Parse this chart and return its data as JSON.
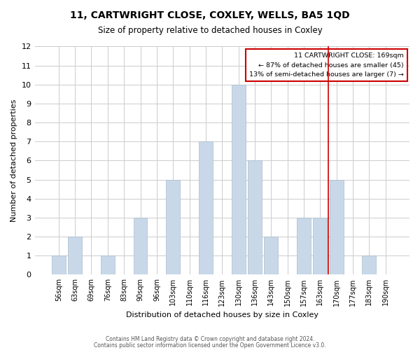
{
  "title": "11, CARTWRIGHT CLOSE, COXLEY, WELLS, BA5 1QD",
  "subtitle": "Size of property relative to detached houses in Coxley",
  "xlabel": "Distribution of detached houses by size in Coxley",
  "ylabel": "Number of detached properties",
  "bar_labels": [
    "56sqm",
    "63sqm",
    "69sqm",
    "76sqm",
    "83sqm",
    "90sqm",
    "96sqm",
    "103sqm",
    "110sqm",
    "116sqm",
    "123sqm",
    "130sqm",
    "136sqm",
    "143sqm",
    "150sqm",
    "157sqm",
    "163sqm",
    "170sqm",
    "177sqm",
    "183sqm",
    "190sqm"
  ],
  "bar_values": [
    1,
    2,
    0,
    1,
    0,
    3,
    0,
    5,
    0,
    7,
    0,
    10,
    6,
    2,
    0,
    3,
    3,
    5,
    0,
    1,
    0
  ],
  "bar_color": "#c8d8e8",
  "bar_edgecolor": "#aabccc",
  "ylim": [
    0,
    12
  ],
  "yticks": [
    0,
    1,
    2,
    3,
    4,
    5,
    6,
    7,
    8,
    9,
    10,
    11,
    12
  ],
  "ref_line_color": "#cc0000",
  "annotation_line1": "11 CARTWRIGHT CLOSE: 169sqm",
  "annotation_line2": "← 87% of detached houses are smaller (45)",
  "annotation_line3": "13% of semi-detached houses are larger (7) →",
  "footer1": "Contains HM Land Registry data © Crown copyright and database right 2024.",
  "footer2": "Contains public sector information licensed under the Open Government Licence v3.0.",
  "background_color": "#ffffff",
  "grid_color": "#cccccc"
}
